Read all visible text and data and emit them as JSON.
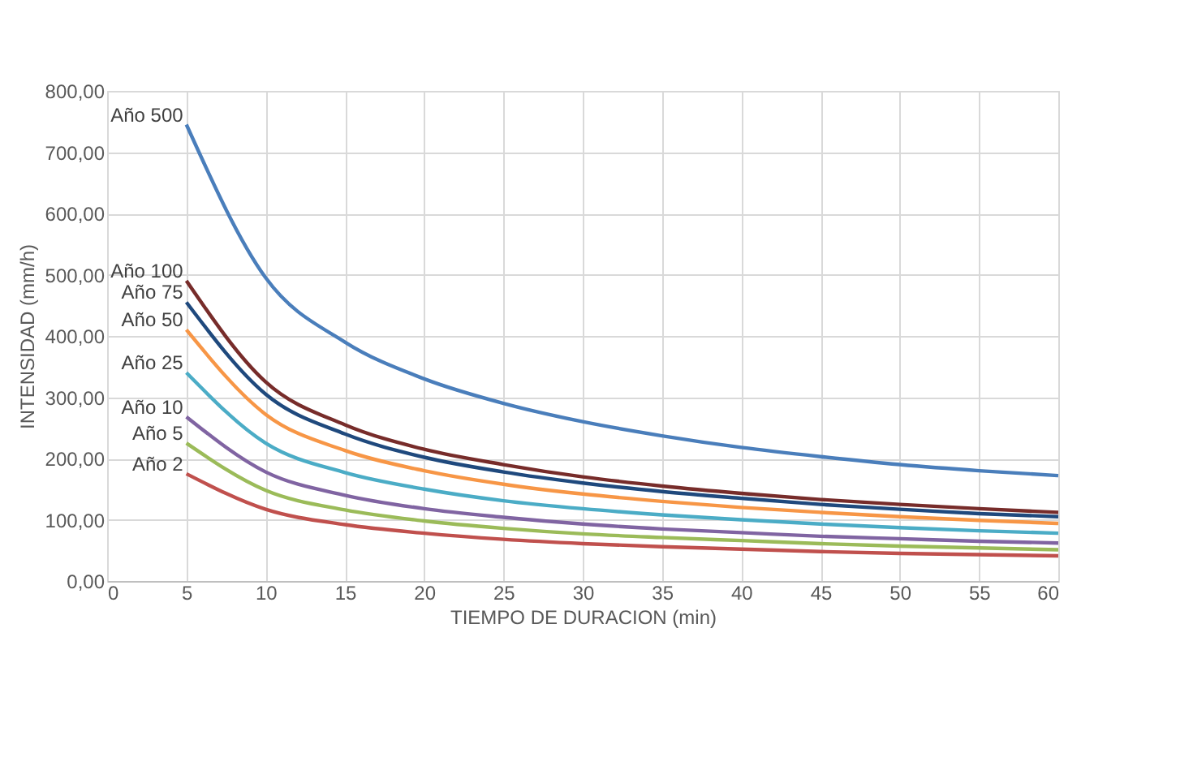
{
  "chart_data": {
    "type": "line",
    "xlabel": "TIEMPO DE DURACION (min)",
    "ylabel": "INTENSIDAD (mm/h)",
    "x": [
      5,
      10,
      15,
      20,
      25,
      30,
      35,
      40,
      45,
      50,
      55,
      60
    ],
    "xlim": [
      0,
      60
    ],
    "xticks": [
      0,
      5,
      10,
      15,
      20,
      25,
      30,
      35,
      40,
      45,
      50,
      55,
      60
    ],
    "ylim": [
      0,
      800
    ],
    "yticks": [
      {
        "value": 0,
        "label": "0,00"
      },
      {
        "value": 100,
        "label": "100,00"
      },
      {
        "value": 200,
        "label": "200,00"
      },
      {
        "value": 300,
        "label": "300,00"
      },
      {
        "value": 400,
        "label": "400,00"
      },
      {
        "value": 500,
        "label": "500,00"
      },
      {
        "value": 600,
        "label": "600,00"
      },
      {
        "value": 700,
        "label": "700,00"
      },
      {
        "value": 800,
        "label": "800,00"
      }
    ],
    "grid": true,
    "legend": false,
    "marker": "none",
    "line_style": "solid",
    "series": [
      {
        "name": "Año 500",
        "color": "#4a7ebb",
        "values": [
          745,
          495,
          390,
          330,
          290,
          260,
          237,
          218,
          203,
          190,
          180,
          172
        ]
      },
      {
        "name": "Año 100",
        "color": "#772c2a",
        "values": [
          490,
          325,
          255,
          215,
          190,
          170,
          155,
          143,
          133,
          125,
          118,
          112
        ]
      },
      {
        "name": "Año 75",
        "color": "#1f497d",
        "values": [
          455,
          305,
          240,
          202,
          178,
          160,
          146,
          135,
          125,
          117,
          110,
          105
        ]
      },
      {
        "name": "Año 50",
        "color": "#f79646",
        "values": [
          410,
          272,
          213,
          180,
          158,
          142,
          130,
          120,
          112,
          105,
          99,
          94
        ]
      },
      {
        "name": "Año 25",
        "color": "#4bacc6",
        "values": [
          340,
          225,
          177,
          150,
          131,
          118,
          108,
          100,
          93,
          87,
          82,
          78
        ]
      },
      {
        "name": "Año 10",
        "color": "#8064a2",
        "values": [
          268,
          178,
          140,
          118,
          104,
          93,
          85,
          79,
          73,
          69,
          65,
          62
        ]
      },
      {
        "name": "Año 5",
        "color": "#9bbb59",
        "values": [
          225,
          148,
          116,
          98,
          86,
          77,
          71,
          66,
          61,
          57,
          54,
          51
        ]
      },
      {
        "name": "Año 2",
        "color": "#c0504d",
        "values": [
          175,
          117,
          92,
          78,
          68,
          61,
          56,
          52,
          48,
          45,
          43,
          41
        ]
      }
    ]
  }
}
